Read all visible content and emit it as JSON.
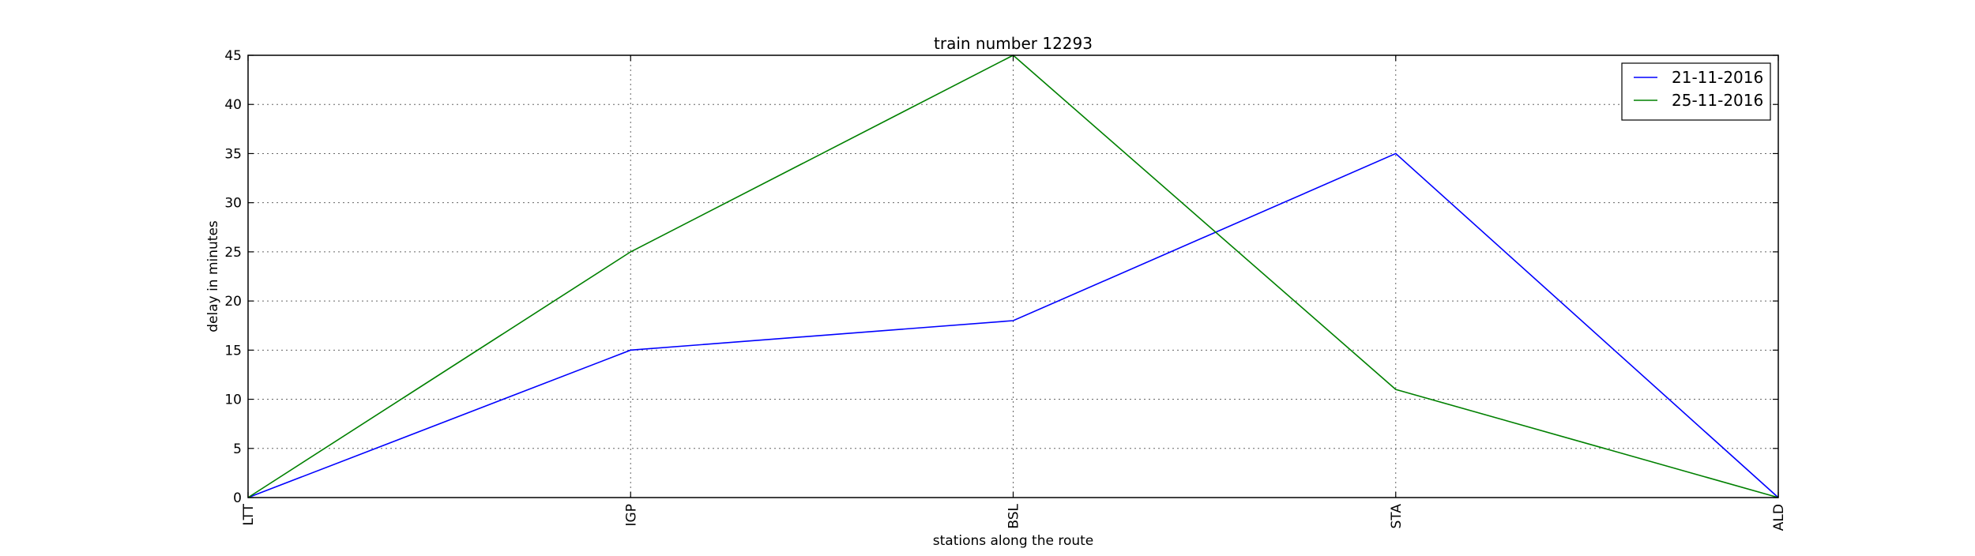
{
  "chart_data": {
    "type": "line",
    "title": "train number 12293",
    "xlabel": "stations along the route",
    "ylabel": "delay in minutes",
    "categories": [
      "LTT",
      "IGP",
      "BSL",
      "STA",
      "ALD"
    ],
    "ylim": [
      0,
      45
    ],
    "yticks": [
      0,
      5,
      10,
      15,
      20,
      25,
      30,
      35,
      40,
      45
    ],
    "grid": true,
    "legend_position": "top-right",
    "series": [
      {
        "name": "21-11-2016",
        "color": "#0000ff",
        "values": [
          0,
          15,
          18,
          35,
          0
        ]
      },
      {
        "name": "25-11-2016",
        "color": "#008000",
        "values": [
          0,
          25,
          45,
          11,
          0
        ]
      }
    ]
  }
}
